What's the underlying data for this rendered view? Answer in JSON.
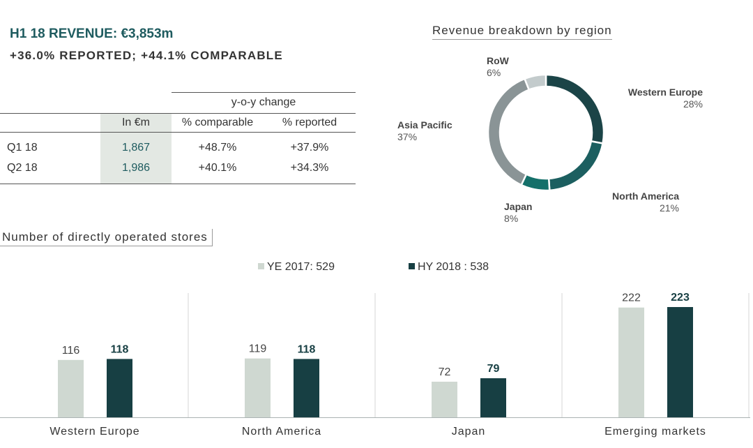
{
  "header": {
    "headline": "H1 18 REVENUE: €3,853m",
    "subhead": "+36.0% REPORTED; +44.1% COMPARABLE"
  },
  "revenue_table": {
    "group_header": "y-o-y change",
    "columns": [
      "In €m",
      "% comparable",
      "% reported"
    ],
    "rows": [
      {
        "label": "Q1 18",
        "in_em": "1,867",
        "comparable": "+48.7%",
        "reported": "+37.9%"
      },
      {
        "label": "Q2 18",
        "in_em": "1,986",
        "comparable": "+40.1%",
        "reported": "+34.3%"
      }
    ]
  },
  "colors": {
    "western_europe": "#1b4447",
    "north_america": "#1c5f60",
    "japan": "#15706a",
    "asia_pacific": "#8a9496",
    "row": "#c3cbcc",
    "bar_ye": "#cfd8d1",
    "bar_hy": "#173f43"
  },
  "chart_data": [
    {
      "type": "pie",
      "donut": true,
      "title": "Revenue breakdown by region",
      "slices": [
        {
          "name": "Western Europe",
          "value": 28,
          "label": "28%",
          "color": "#1b4447"
        },
        {
          "name": "North America",
          "value": 21,
          "label": "21%",
          "color": "#1c5f60"
        },
        {
          "name": "Japan",
          "value": 8,
          "label": "8%",
          "color": "#15706a"
        },
        {
          "name": "Asia Pacific",
          "value": 37,
          "label": "37%",
          "color": "#8a9496"
        },
        {
          "name": "RoW",
          "value": 6,
          "label": "6%",
          "color": "#c3cbcc"
        }
      ]
    },
    {
      "type": "bar",
      "title": "Number of directly operated stores",
      "categories": [
        "Western Europe",
        "North America",
        "Japan",
        "Emerging markets"
      ],
      "series": [
        {
          "name": "YE 2017: 529",
          "values": [
            116,
            119,
            72,
            222
          ],
          "color": "#cfd8d1"
        },
        {
          "name": "HY 2018 : 538",
          "values": [
            118,
            118,
            79,
            223
          ],
          "color": "#173f43"
        }
      ],
      "ylim": [
        0,
        230
      ],
      "grid": false
    }
  ]
}
